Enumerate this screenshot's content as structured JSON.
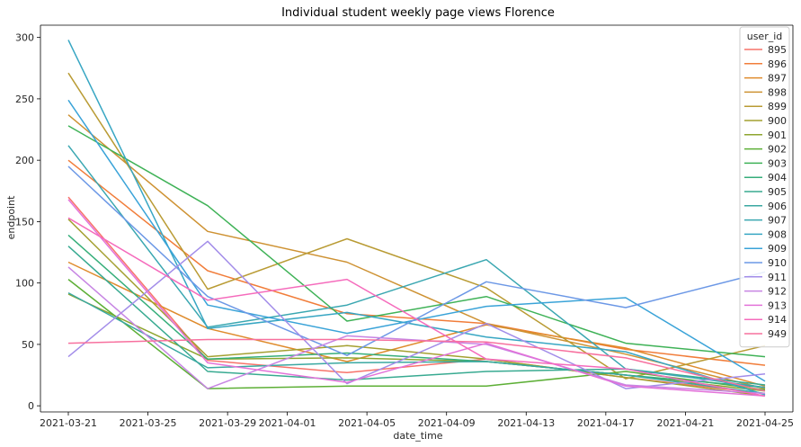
{
  "chart_data": {
    "type": "line",
    "title": "Individual student weekly page views Florence",
    "xlabel": "date_time",
    "ylabel": "endpoint",
    "x": [
      "2021-03-21",
      "2021-03-28",
      "2021-04-04",
      "2021-04-11",
      "2021-04-18",
      "2021-04-25"
    ],
    "x_ticks": [
      "2021-03-21",
      "2021-03-25",
      "2021-03-29",
      "2021-04-01",
      "2021-04-05",
      "2021-04-09",
      "2021-04-13",
      "2021-04-17",
      "2021-04-21",
      "2021-04-25"
    ],
    "ylim": [
      -5,
      310
    ],
    "y_ticks": [
      0,
      50,
      100,
      150,
      200,
      250,
      300
    ],
    "grid": false,
    "legend_title": "user_id",
    "legend_position": "top-right",
    "series": [
      {
        "name": "895",
        "color": "#f7736a",
        "values": [
          170,
          37,
          27,
          38,
          23,
          10
        ]
      },
      {
        "name": "896",
        "color": "#f17d3a",
        "values": [
          200,
          110,
          75,
          67,
          46,
          33
        ]
      },
      {
        "name": "897",
        "color": "#df8b2c",
        "values": [
          117,
          63,
          36,
          66,
          47,
          16
        ]
      },
      {
        "name": "898",
        "color": "#ce9233",
        "values": [
          237,
          142,
          117,
          67,
          42,
          14
        ]
      },
      {
        "name": "899",
        "color": "#b99b34",
        "values": [
          271,
          95,
          136,
          96,
          22,
          49
        ]
      },
      {
        "name": "900",
        "color": "#a4a031",
        "values": [
          152,
          40,
          49,
          38,
          23,
          8
        ]
      },
      {
        "name": "901",
        "color": "#8ea52f",
        "values": [
          91,
          38,
          39,
          36,
          25,
          12
        ]
      },
      {
        "name": "902",
        "color": "#5daf36",
        "values": [
          103,
          14,
          16,
          16,
          28,
          13
        ]
      },
      {
        "name": "903",
        "color": "#3fb257",
        "values": [
          228,
          163,
          69,
          89,
          51,
          40
        ]
      },
      {
        "name": "904",
        "color": "#36ae7a",
        "values": [
          139,
          38,
          43,
          36,
          25,
          15
        ]
      },
      {
        "name": "905",
        "color": "#38aa91",
        "values": [
          130,
          28,
          21,
          28,
          30,
          17
        ]
      },
      {
        "name": "906",
        "color": "#3aa8a1",
        "values": [
          92,
          31,
          35,
          36,
          25,
          10
        ]
      },
      {
        "name": "907",
        "color": "#3aa7b1",
        "values": [
          212,
          64,
          82,
          119,
          30,
          15
        ]
      },
      {
        "name": "908",
        "color": "#37a6c3",
        "values": [
          298,
          63,
          76,
          56,
          44,
          9
        ]
      },
      {
        "name": "909",
        "color": "#3aa3d8",
        "values": [
          249,
          82,
          59,
          81,
          88,
          20
        ]
      },
      {
        "name": "910",
        "color": "#6c98e6",
        "values": [
          195,
          89,
          41,
          101,
          80,
          109
        ]
      },
      {
        "name": "911",
        "color": "#a38de9",
        "values": [
          40,
          134,
          18,
          67,
          14,
          26
        ]
      },
      {
        "name": "912",
        "color": "#c785e3",
        "values": [
          113,
          14,
          57,
          50,
          17,
          10
        ]
      },
      {
        "name": "913",
        "color": "#e372d9",
        "values": [
          168,
          35,
          19,
          51,
          16,
          8
        ]
      },
      {
        "name": "914",
        "color": "#f56bbc",
        "values": [
          153,
          86,
          103,
          38,
          30,
          8
        ]
      },
      {
        "name": "949",
        "color": "#f7709e",
        "values": [
          51,
          54,
          54,
          52,
          39,
          12
        ]
      }
    ]
  }
}
